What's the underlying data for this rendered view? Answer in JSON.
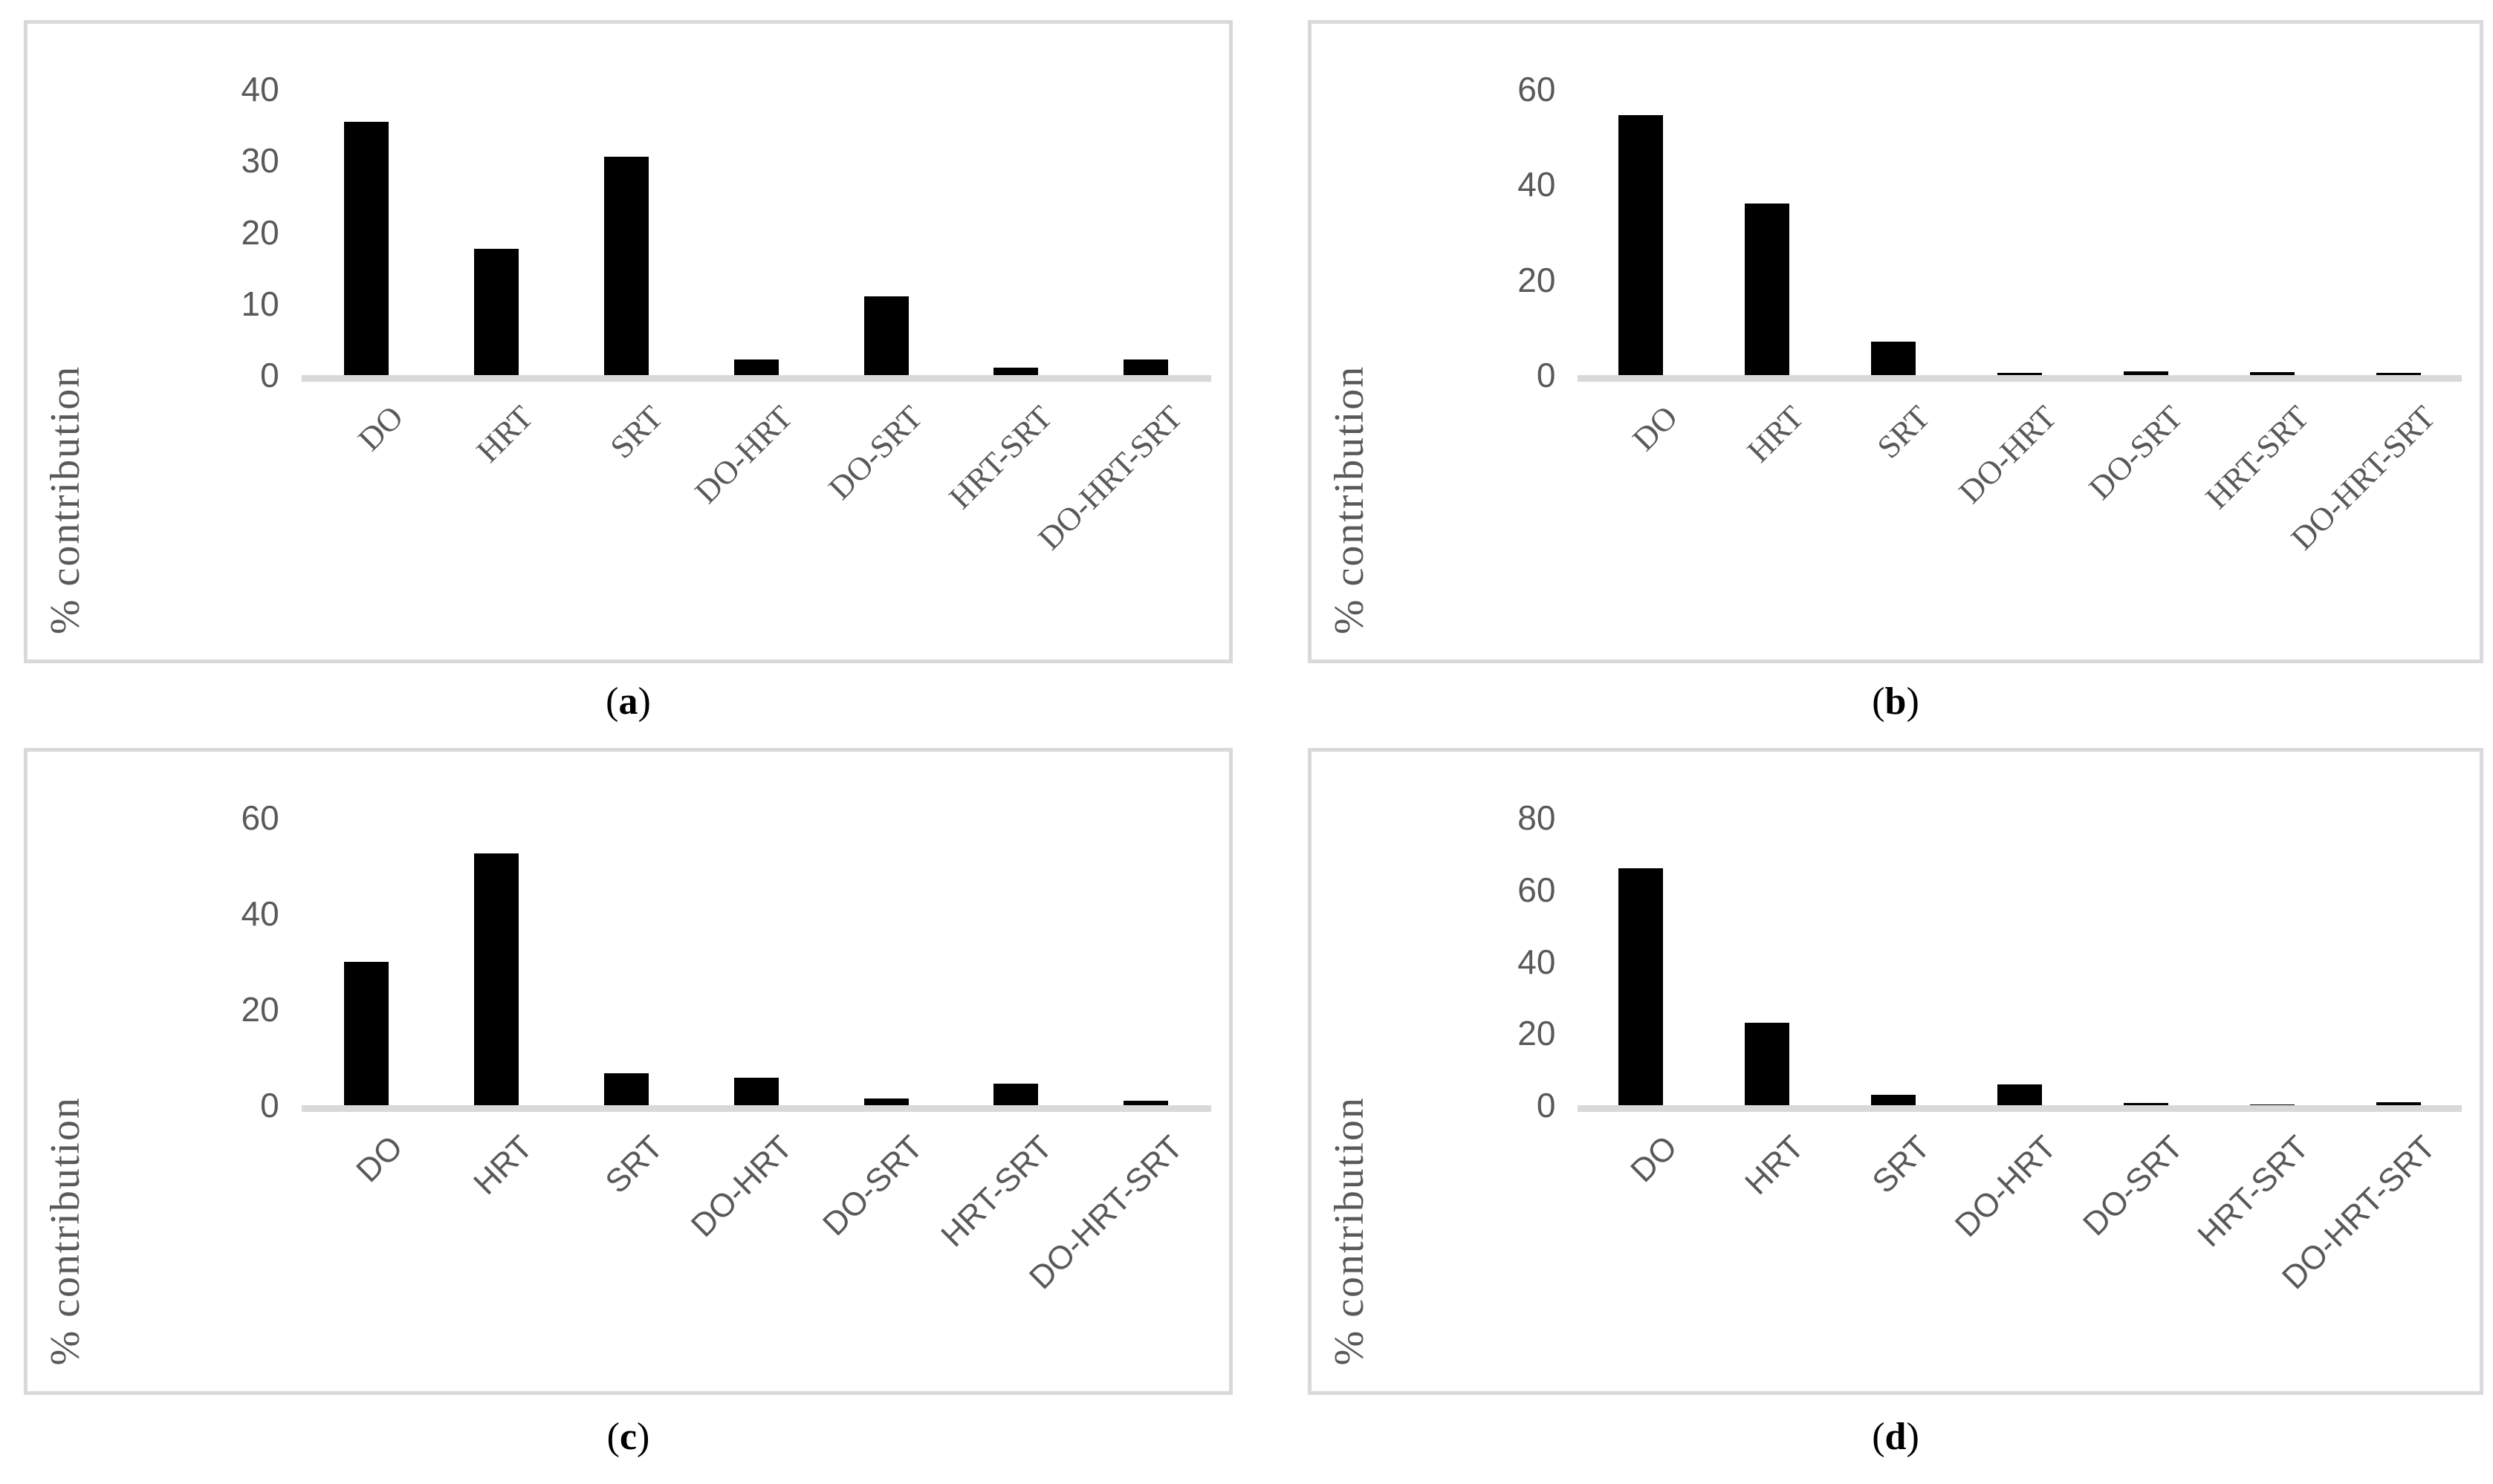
{
  "colors": {
    "bar": "#000000",
    "axis_text": "#595959",
    "panel_border": "#d9d9d9",
    "baseline": "#d9d9d9",
    "background": "#ffffff"
  },
  "chart_data": [
    {
      "type": "bar",
      "panel": "a",
      "caption": {
        "open": "(",
        "letter": "a",
        "close": ")"
      },
      "title": "",
      "xlabel": "",
      "ylabel": "% contribution",
      "categories": [
        "DO",
        "HRT",
        "SRT",
        "DO-HRT",
        "DO-SRT",
        "HRT-SRT",
        "DO-HRT-SRT"
      ],
      "values": [
        35.4,
        17.7,
        30.5,
        2.2,
        11.0,
        1.0,
        2.2
      ],
      "yticks": [
        0,
        10,
        20,
        30,
        40
      ],
      "ylim": [
        0,
        40
      ],
      "grid": false,
      "legend": "none",
      "xlabel_font": "serif"
    },
    {
      "type": "bar",
      "panel": "b",
      "caption": {
        "open": "(",
        "letter": "b",
        "close": ")"
      },
      "title": "",
      "xlabel": "",
      "ylabel": "% contribution",
      "categories": [
        "DO",
        "HRT",
        "SRT",
        "DO-HRT",
        "DO-SRT",
        "HRT-SRT",
        "DO-HRT-SRT"
      ],
      "values": [
        54.5,
        36.0,
        7.0,
        0.5,
        0.8,
        0.6,
        0.5
      ],
      "yticks": [
        0,
        20,
        40,
        60
      ],
      "ylim": [
        0,
        60
      ],
      "grid": false,
      "legend": "none",
      "xlabel_font": "serif"
    },
    {
      "type": "bar",
      "panel": "c",
      "caption": {
        "open": "(",
        "letter": "c",
        "close": ")"
      },
      "title": "",
      "xlabel": "",
      "ylabel": "% contribution",
      "categories": [
        "DO",
        "HRT",
        "SRT",
        "DO-HRT",
        "DO-SRT",
        "HRT-SRT",
        "DO-HRT-SRT"
      ],
      "values": [
        30.0,
        52.6,
        6.6,
        5.7,
        1.4,
        4.5,
        1.0
      ],
      "yticks": [
        0,
        20,
        40,
        60
      ],
      "ylim": [
        0,
        60
      ],
      "grid": false,
      "legend": "none",
      "xlabel_font": "sans"
    },
    {
      "type": "bar",
      "panel": "d",
      "caption": {
        "open": "(",
        "letter": "d",
        "close": ")"
      },
      "title": "",
      "xlabel": "",
      "ylabel": "% contribution",
      "categories": [
        "DO",
        "HRT",
        "SRT",
        "DO-HRT",
        "DO-SRT",
        "HRT-SRT",
        "DO-HRT-SRT"
      ],
      "values": [
        66.0,
        23.0,
        2.8,
        5.8,
        0.6,
        0.1,
        0.9
      ],
      "yticks": [
        0,
        20,
        40,
        60,
        80
      ],
      "ylim": [
        0,
        80
      ],
      "grid": false,
      "legend": "none",
      "xlabel_font": "sans"
    }
  ]
}
